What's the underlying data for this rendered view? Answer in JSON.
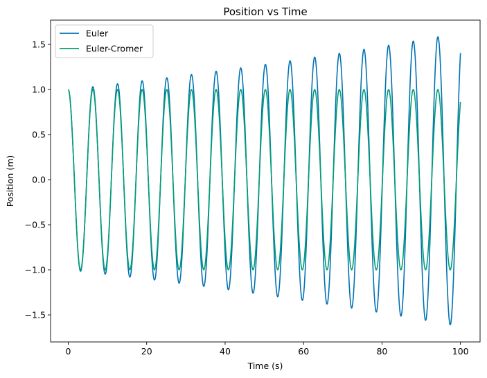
{
  "chart_data": {
    "type": "line",
    "title": "Position vs Time",
    "xlabel": "Time (s)",
    "ylabel": "Position (m)",
    "xlim": [
      -4.5,
      105
    ],
    "ylim": [
      -1.8,
      1.77
    ],
    "xticks": [
      0,
      20,
      40,
      60,
      80,
      100
    ],
    "xtick_labels": [
      "0",
      "20",
      "40",
      "60",
      "80",
      "100"
    ],
    "yticks": [
      -1.5,
      -1.0,
      -0.5,
      0.0,
      0.5,
      1.0,
      1.5
    ],
    "ytick_labels": [
      "−1.5",
      "−1.0",
      "−0.5",
      "0.0",
      "0.5",
      "1.0",
      "1.5"
    ],
    "grid": false,
    "legend_position": "top-left",
    "omega": 1.0,
    "t_start": 0,
    "t_end": 100,
    "series": [
      {
        "name": "Euler",
        "color": "#0072b2",
        "initial_value": 1.0,
        "envelope_at_end": 1.63
      },
      {
        "name": "Euler-Cromer",
        "color": "#009e73",
        "initial_value": 1.0,
        "envelope_at_end": 1.0
      }
    ]
  }
}
